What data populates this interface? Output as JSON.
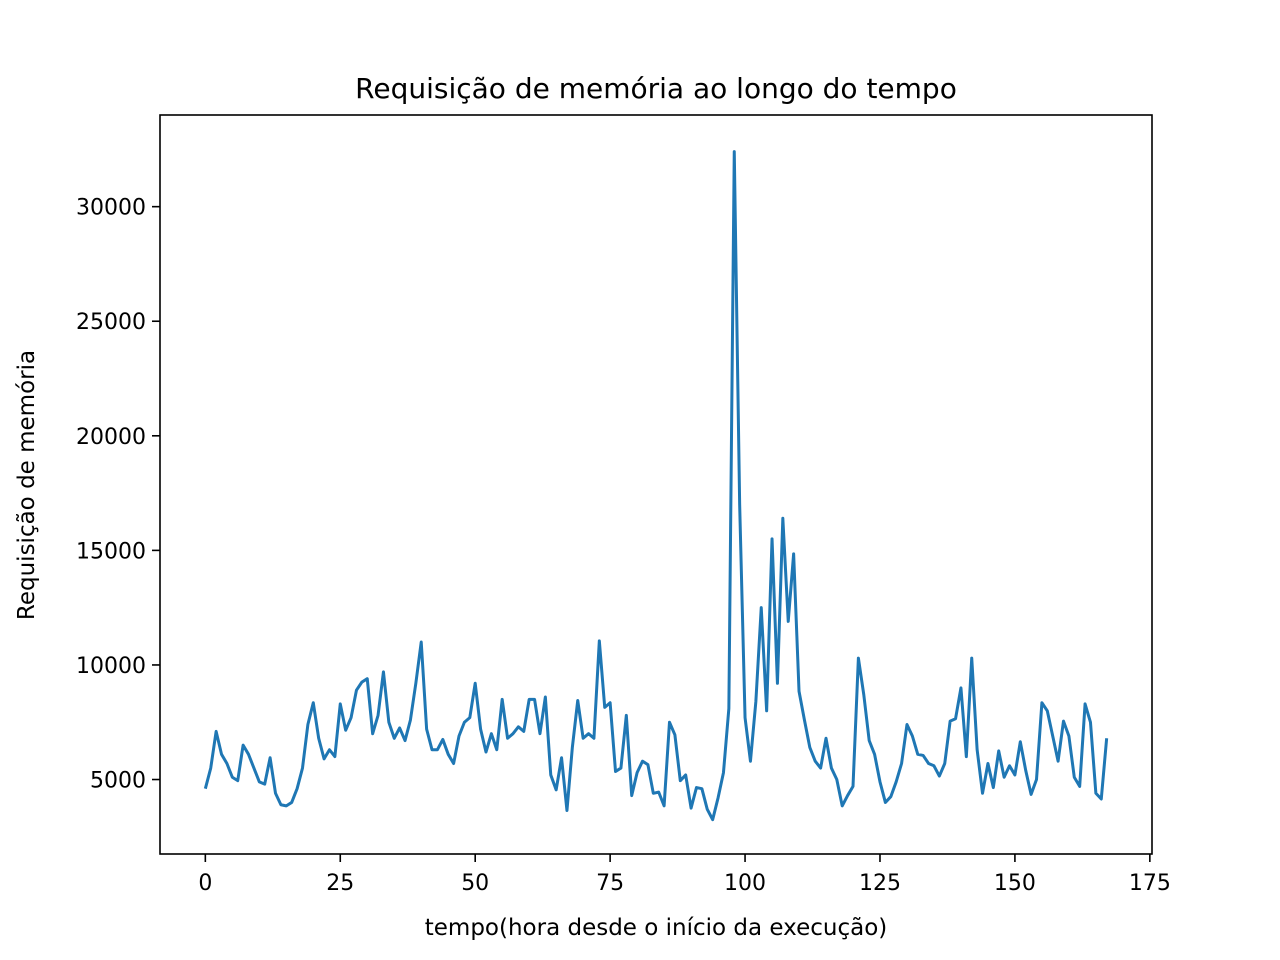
{
  "chart_data": {
    "type": "line",
    "title": "Requisição de memória ao longo do tempo",
    "xlabel": "tempo(hora desde o início da execução)",
    "ylabel": "Requisição de memória",
    "xlim": [
      -8.4,
      175.4
    ],
    "ylim": [
      1750,
      34000
    ],
    "xticks": [
      0,
      25,
      50,
      75,
      100,
      125,
      150,
      175
    ],
    "yticks": [
      5000,
      10000,
      15000,
      20000,
      25000,
      30000
    ],
    "grid": false,
    "line_color": "#1f77b4",
    "series": [
      {
        "values": [
          4600,
          5500,
          7100,
          6100,
          5700,
          5100,
          4950,
          6500,
          6100,
          5500,
          4900,
          4800,
          5950,
          4400,
          3900,
          3850,
          4000,
          4600,
          5500,
          7400,
          8350,
          6800,
          5900,
          6300,
          6000,
          8300,
          7150,
          7700,
          8900,
          9250,
          9400,
          7000,
          7800,
          9700,
          7500,
          6800,
          7250,
          6700,
          7600,
          9200,
          11000,
          7200,
          6300,
          6300,
          6750,
          6100,
          5700,
          6900,
          7500,
          7700,
          9200,
          7200,
          6200,
          7000,
          6300,
          8500,
          6800,
          7000,
          7300,
          7100,
          8500,
          8500,
          7000,
          8600,
          5200,
          4550,
          5950,
          3650,
          6400,
          8450,
          6800,
          7000,
          6800,
          11050,
          8150,
          8350,
          5350,
          5500,
          7800,
          4300,
          5300,
          5800,
          5650,
          4400,
          4450,
          3850,
          7500,
          6950,
          4950,
          5200,
          3750,
          4650,
          4600,
          3700,
          3250,
          4200,
          5300,
          8100,
          32400,
          17000,
          7700,
          5800,
          8400,
          12500,
          8000,
          15500,
          9200,
          16400,
          11900,
          14850,
          8850,
          7600,
          6400,
          5800,
          5500,
          6800,
          5500,
          5000,
          3850,
          4300,
          4700,
          10300,
          8700,
          6700,
          6100,
          4900,
          4000,
          4250,
          4900,
          5700,
          7400,
          6900,
          6100,
          6050,
          5700,
          5600,
          5150,
          5700,
          7550,
          7650,
          9000,
          6000,
          10300,
          6300,
          4400,
          5700,
          4650,
          6250,
          5100,
          5600,
          5200,
          6650,
          5400,
          4350,
          5000,
          8350,
          8000,
          6900,
          5800,
          7550,
          6900,
          5100,
          4700,
          8300,
          7500,
          4400,
          4150,
          6800
        ]
      }
    ]
  }
}
